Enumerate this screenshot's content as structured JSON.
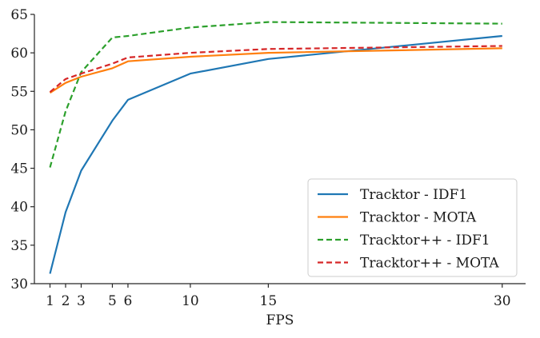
{
  "chart_data": {
    "type": "line",
    "title": "",
    "xlabel": "FPS",
    "ylabel": "",
    "xlim": [
      0,
      31.5
    ],
    "ylim": [
      30,
      65
    ],
    "xticks": [
      1,
      2,
      3,
      5,
      6,
      10,
      15,
      30
    ],
    "yticks": [
      30,
      35,
      40,
      45,
      50,
      55,
      60,
      65
    ],
    "grid": false,
    "legend_position": "bottom-right",
    "series": [
      {
        "name": "Tracktor - IDF1",
        "color": "#1f77b4",
        "dash": "solid",
        "x": [
          1,
          2,
          3,
          5,
          6,
          10,
          15,
          30
        ],
        "y": [
          31.3,
          39.3,
          44.7,
          51.2,
          53.9,
          57.3,
          59.2,
          62.2
        ]
      },
      {
        "name": "Tracktor - MOTA",
        "color": "#ff7f0e",
        "dash": "solid",
        "x": [
          1,
          2,
          3,
          5,
          6,
          10,
          15,
          30
        ],
        "y": [
          54.8,
          56.1,
          56.9,
          58.0,
          58.9,
          59.5,
          60.0,
          60.6
        ]
      },
      {
        "name": "Tracktor++ - IDF1",
        "color": "#2ca02c",
        "dash": "dashed",
        "x": [
          1,
          2,
          3,
          5,
          6,
          10,
          15,
          30
        ],
        "y": [
          45.1,
          52.4,
          57.5,
          62.0,
          62.2,
          63.3,
          64.0,
          63.8
        ]
      },
      {
        "name": "Tracktor++ - MOTA",
        "color": "#d62728",
        "dash": "dashed",
        "x": [
          1,
          2,
          3,
          5,
          6,
          10,
          15,
          30
        ],
        "y": [
          54.9,
          56.6,
          57.3,
          58.6,
          59.4,
          60.0,
          60.5,
          60.9
        ]
      }
    ]
  }
}
